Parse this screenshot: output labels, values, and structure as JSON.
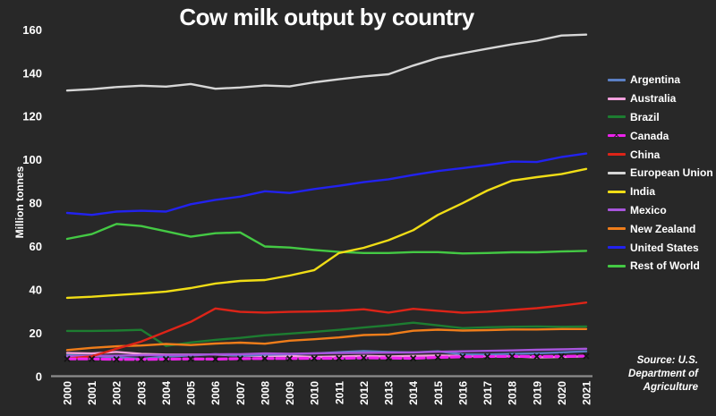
{
  "chart_data": {
    "type": "line",
    "title": "Cow milk output by country",
    "ylabel": "Million tonnes",
    "xlabel": "",
    "ylim": [
      0,
      160
    ],
    "yticks": [
      0,
      20,
      40,
      60,
      80,
      100,
      120,
      140,
      160
    ],
    "grid": false,
    "legend_position": "right",
    "background_color": "#282828",
    "axis_line_color": "#8c8c8c",
    "x": [
      "2000",
      "2001",
      "2002",
      "2003",
      "2004",
      "2005",
      "2006",
      "2007",
      "2008",
      "2009",
      "2010",
      "2011",
      "2012",
      "2013",
      "2014",
      "2015",
      "2016",
      "2017",
      "2018",
      "2019",
      "2020",
      "2021"
    ],
    "series": [
      {
        "name": "Argentina",
        "color": "#5b7fc4",
        "values": [
          9.8,
          9.5,
          8.8,
          8.1,
          9.2,
          9.7,
          10.3,
          9.6,
          10.0,
          10.3,
          10.6,
          11.2,
          11.7,
          11.3,
          11.1,
          11.6,
          10.2,
          10.1,
          10.5,
          10.7,
          11.1,
          11.6
        ]
      },
      {
        "name": "Australia",
        "color": "#f2a0dd",
        "values": [
          10.8,
          10.6,
          11.3,
          10.4,
          10.1,
          10.1,
          10.1,
          9.6,
          9.5,
          9.4,
          9.0,
          9.2,
          9.5,
          9.2,
          9.5,
          9.7,
          9.5,
          9.3,
          9.3,
          8.8,
          9.0,
          9.3
        ]
      },
      {
        "name": "Brazil",
        "color": "#1d7d31",
        "values": [
          21.0,
          21.0,
          21.2,
          21.5,
          14.1,
          15.7,
          16.9,
          17.8,
          19.0,
          19.8,
          20.6,
          21.5,
          22.6,
          23.6,
          24.8,
          23.6,
          22.3,
          22.7,
          22.9,
          23.1,
          22.9,
          23.1
        ]
      },
      {
        "name": "Canada",
        "color": "#ee22ee",
        "dashed": true,
        "marker": "x",
        "values": [
          8.1,
          8.1,
          7.9,
          7.9,
          8.0,
          8.1,
          8.0,
          8.2,
          8.3,
          8.3,
          8.4,
          8.4,
          8.6,
          8.5,
          8.4,
          8.8,
          9.1,
          9.2,
          9.3,
          9.2,
          9.3,
          9.4
        ]
      },
      {
        "name": "China",
        "color": "#dd2418",
        "values": [
          8.3,
          9.3,
          12.8,
          16.1,
          20.7,
          25.2,
          31.4,
          29.8,
          29.5,
          29.8,
          30.0,
          30.3,
          31.0,
          29.5,
          31.2,
          30.3,
          29.4,
          29.9,
          30.7,
          31.5,
          32.7,
          34.1
        ]
      },
      {
        "name": "European Union",
        "color": "#d6d6d6",
        "values": [
          132.0,
          132.6,
          133.6,
          134.2,
          133.8,
          135.0,
          132.8,
          133.4,
          134.3,
          133.9,
          135.8,
          137.2,
          138.5,
          139.5,
          143.5,
          147.0,
          149.2,
          151.3,
          153.3,
          155.0,
          157.4,
          157.8
        ]
      },
      {
        "name": "India",
        "color": "#f0dd16",
        "values": [
          36.3,
          36.8,
          37.6,
          38.3,
          39.2,
          40.8,
          42.9,
          44.1,
          44.5,
          46.6,
          49.1,
          57.0,
          59.4,
          62.9,
          67.5,
          74.6,
          80.0,
          85.8,
          90.4,
          92.0,
          93.4,
          95.8
        ]
      },
      {
        "name": "Mexico",
        "color": "#a855dd",
        "values": [
          9.3,
          9.5,
          9.6,
          9.8,
          9.9,
          10.0,
          10.2,
          10.3,
          10.6,
          10.5,
          10.7,
          10.8,
          10.9,
          11.0,
          11.1,
          11.4,
          11.6,
          11.8,
          12.0,
          12.3,
          12.5,
          12.8
        ]
      },
      {
        "name": "New Zealand",
        "color": "#ef7d1a",
        "values": [
          12.2,
          13.2,
          13.9,
          14.3,
          15.0,
          14.5,
          15.2,
          15.6,
          15.1,
          16.5,
          17.2,
          18.0,
          19.1,
          19.4,
          21.1,
          21.6,
          21.2,
          21.4,
          21.7,
          21.7,
          21.9,
          21.9
        ]
      },
      {
        "name": "United States",
        "color": "#2222ef",
        "values": [
          75.5,
          74.6,
          76.1,
          76.5,
          76.1,
          79.5,
          81.5,
          83.0,
          85.5,
          84.7,
          86.5,
          88.0,
          89.7,
          91.0,
          93.0,
          94.8,
          96.2,
          97.6,
          99.2,
          99.0,
          101.3,
          102.9
        ]
      },
      {
        "name": "Rest of World",
        "color": "#44c944",
        "values": [
          63.5,
          65.7,
          70.4,
          69.4,
          67.0,
          64.5,
          66.1,
          66.5,
          60.0,
          59.5,
          58.4,
          57.5,
          57.0,
          57.0,
          57.4,
          57.4,
          56.8,
          57.0,
          57.3,
          57.3,
          57.7,
          58.0
        ]
      }
    ],
    "draw_order": [
      "Brazil",
      "New Zealand",
      "Rest of World",
      "European Union",
      "United States",
      "India",
      "Australia",
      "Argentina",
      "Mexico",
      "China",
      "Canada"
    ]
  },
  "source": {
    "lines": [
      "Source: U.S.",
      "Department of",
      "Agriculture"
    ]
  }
}
